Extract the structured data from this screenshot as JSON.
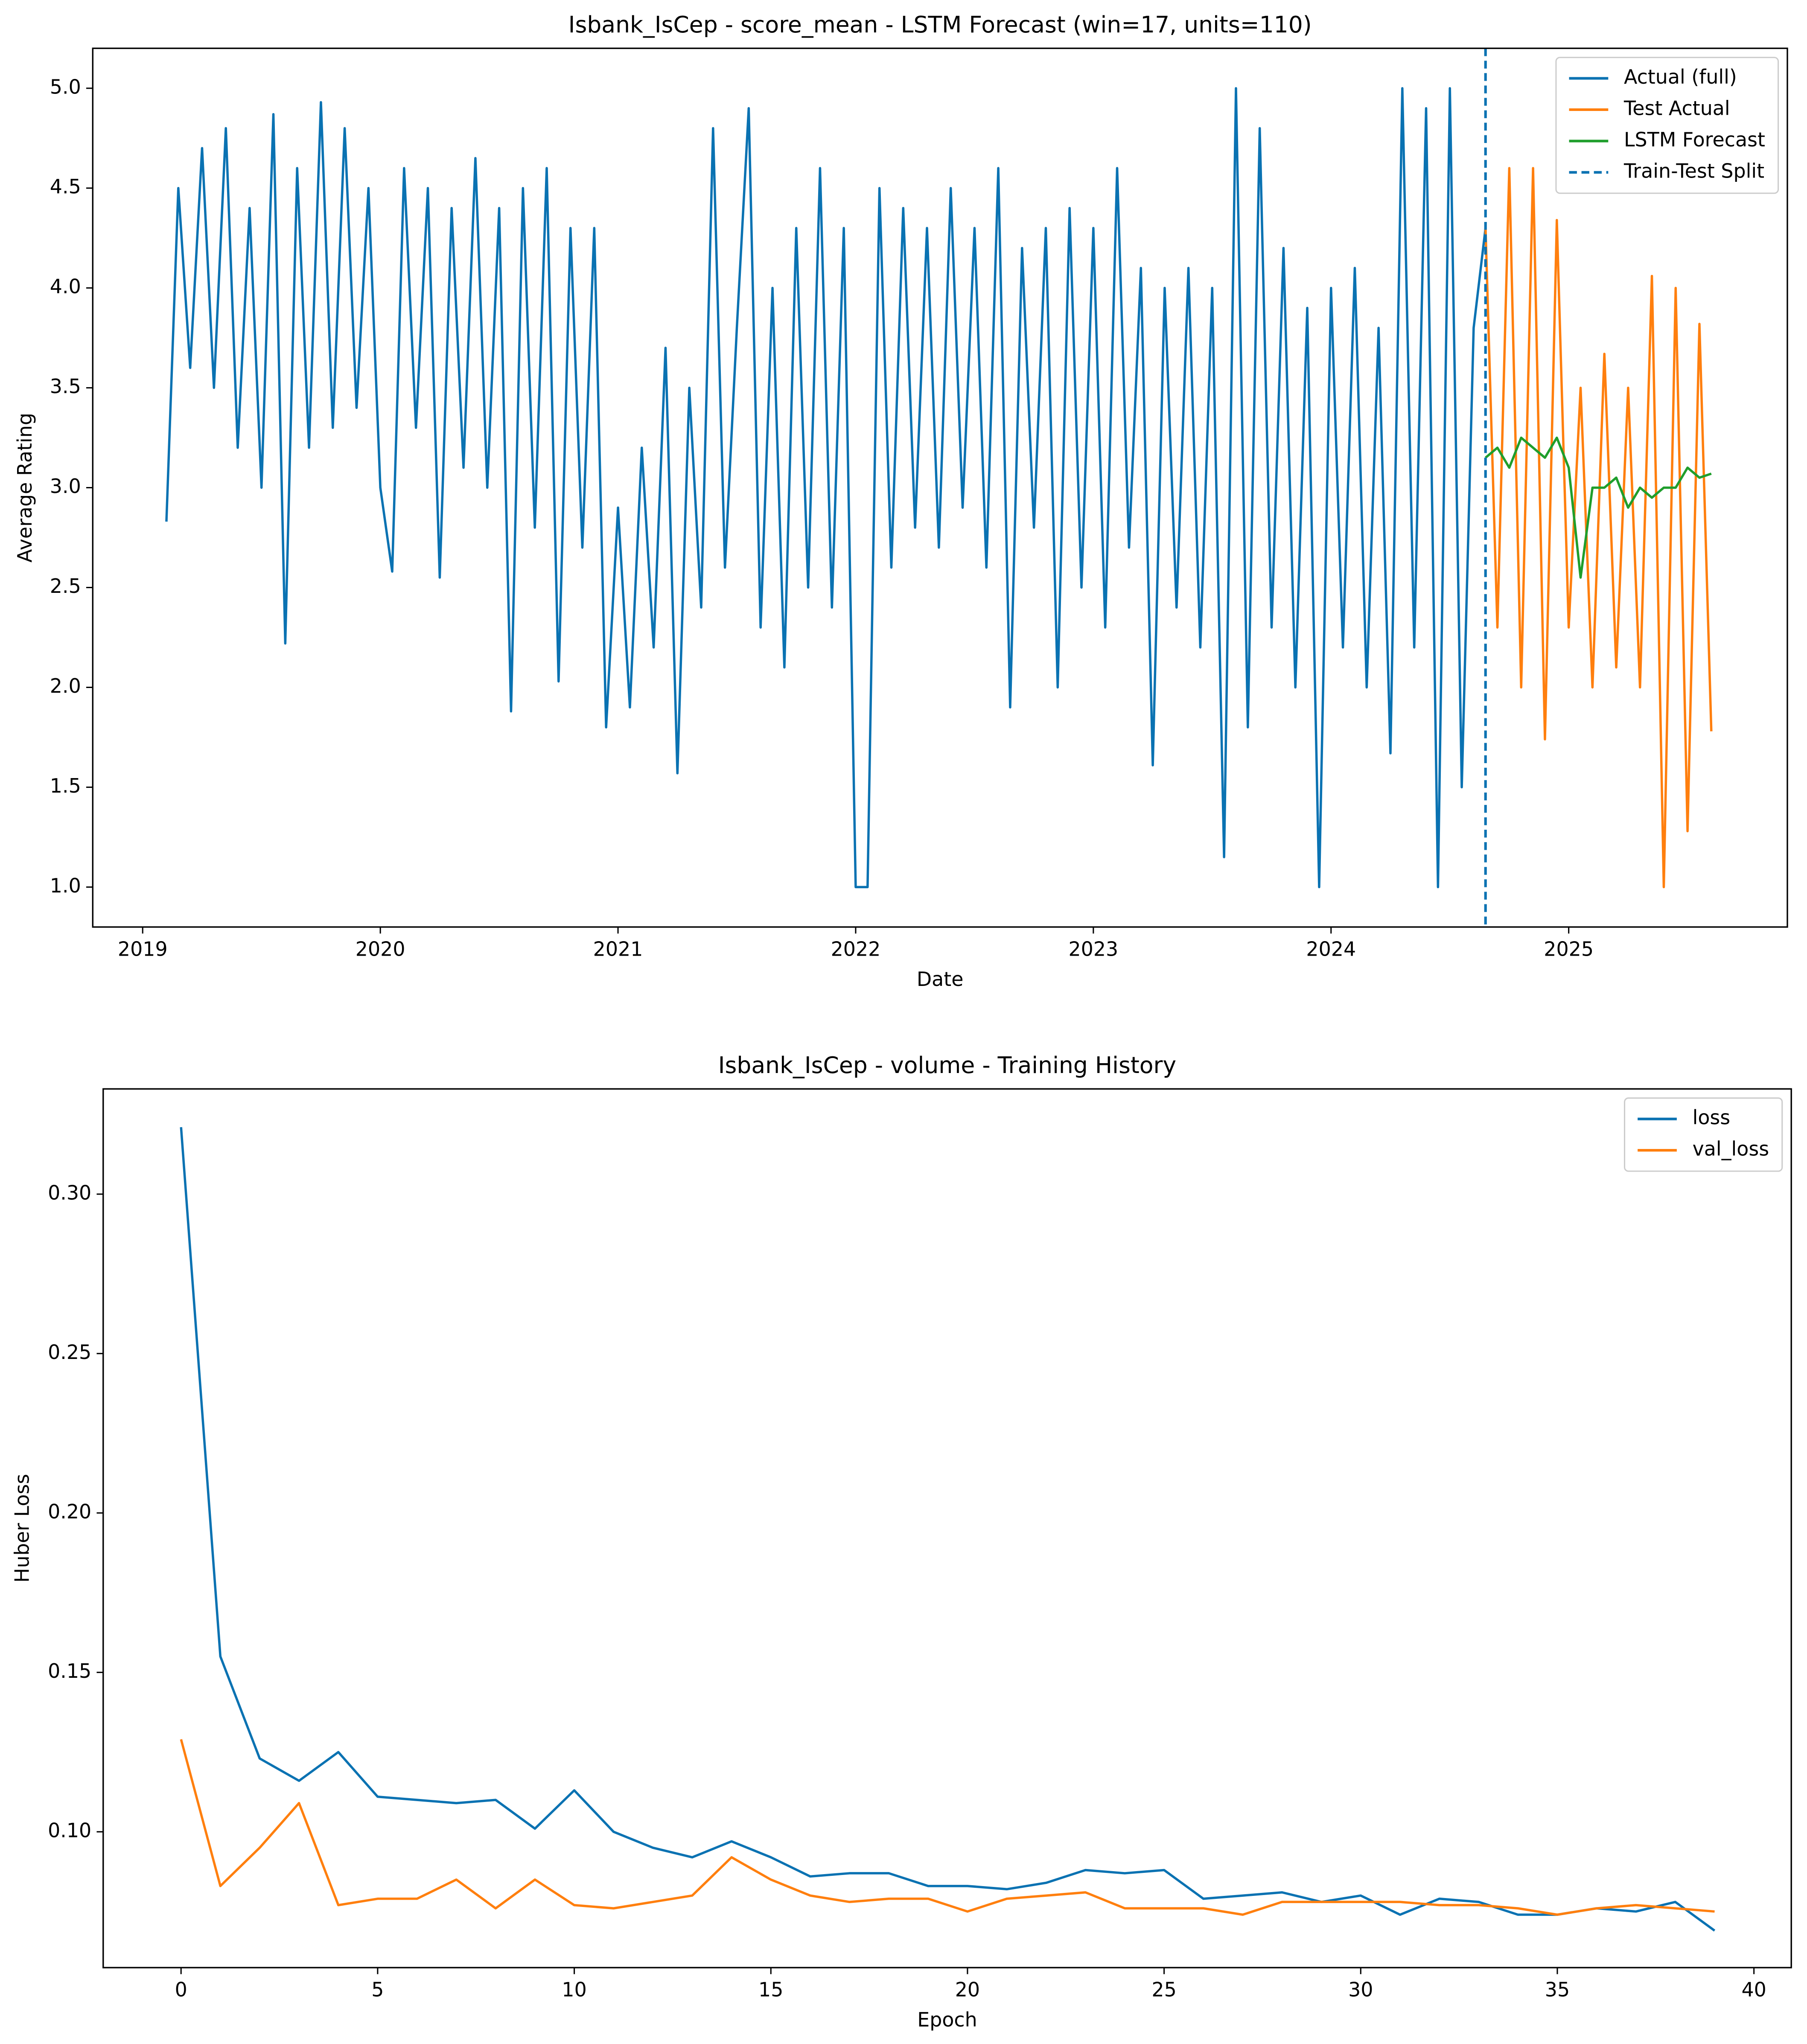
{
  "chart_data": [
    {
      "type": "line",
      "title": "Isbank_IsCep - score_mean - LSTM Forecast (win=17, units=110)",
      "xlabel": "Date",
      "ylabel": "Average Rating",
      "xlim": [
        2018.79,
        2025.92
      ],
      "xticks": [
        2019,
        2020,
        2021,
        2022,
        2023,
        2024,
        2025
      ],
      "ylim": [
        0.8,
        5.2
      ],
      "yticks": [
        {
          "value": 1.0,
          "label": "1.0"
        },
        {
          "value": 1.5,
          "label": "1.5"
        },
        {
          "value": 2.0,
          "label": "2.0"
        },
        {
          "value": 2.5,
          "label": "2.5"
        },
        {
          "value": 3.0,
          "label": "3.0"
        },
        {
          "value": 3.5,
          "label": "3.5"
        },
        {
          "value": 4.0,
          "label": "4.0"
        },
        {
          "value": 4.5,
          "label": "4.5"
        },
        {
          "value": 5.0,
          "label": "5.0"
        }
      ],
      "legend": "upper right",
      "series": [
        {
          "name": "Actual (full)",
          "color": "#0a72b2",
          "x": [
            2019.1,
            2019.15,
            2019.2,
            2019.25,
            2019.3,
            2019.35,
            2019.4,
            2019.45,
            2019.5,
            2019.55,
            2019.6,
            2019.65,
            2019.7,
            2019.75,
            2019.8,
            2019.85,
            2019.9,
            2019.95,
            2020.0,
            2020.05,
            2020.1,
            2020.15,
            2020.2,
            2020.25,
            2020.3,
            2020.35,
            2020.4,
            2020.45,
            2020.5,
            2020.55,
            2020.6,
            2020.65,
            2020.7,
            2020.75,
            2020.8,
            2020.85,
            2020.9,
            2020.95,
            2021.0,
            2021.05,
            2021.1,
            2021.15,
            2021.2,
            2021.25,
            2021.3,
            2021.35,
            2021.4,
            2021.45,
            2021.5,
            2021.55,
            2021.6,
            2021.65,
            2021.7,
            2021.75,
            2021.8,
            2021.85,
            2021.9,
            2021.95,
            2022.0,
            2022.05,
            2022.1,
            2022.15,
            2022.2,
            2022.25,
            2022.3,
            2022.35,
            2022.4,
            2022.45,
            2022.5,
            2022.55,
            2022.6,
            2022.65,
            2022.7,
            2022.75,
            2022.8,
            2022.85,
            2022.9,
            2022.95,
            2023.0,
            2023.05,
            2023.1,
            2023.15,
            2023.2,
            2023.25,
            2023.3,
            2023.35,
            2023.4,
            2023.45,
            2023.5,
            2023.55,
            2023.6,
            2023.65,
            2023.7,
            2023.75,
            2023.8,
            2023.85,
            2023.9,
            2023.95,
            2024.0,
            2024.05,
            2024.1,
            2024.15,
            2024.2,
            2024.25,
            2024.3,
            2024.35,
            2024.4,
            2024.45,
            2024.5,
            2024.55,
            2024.6,
            2024.65
          ],
          "values": [
            2.83,
            4.5,
            3.6,
            4.7,
            3.5,
            4.8,
            3.2,
            4.4,
            3.0,
            4.87,
            2.22,
            4.6,
            3.2,
            4.93,
            3.3,
            4.8,
            3.4,
            4.5,
            3.0,
            2.58,
            4.6,
            3.3,
            4.5,
            2.55,
            4.4,
            3.1,
            4.65,
            3.0,
            4.4,
            1.88,
            4.5,
            2.8,
            4.6,
            2.03,
            4.3,
            2.7,
            4.3,
            1.8,
            2.9,
            1.9,
            3.2,
            2.2,
            3.7,
            1.57,
            3.5,
            2.4,
            4.8,
            2.6,
            3.8,
            4.9,
            2.3,
            4.0,
            2.1,
            4.3,
            2.5,
            4.6,
            2.4,
            4.3,
            1.0,
            1.0,
            4.5,
            2.6,
            4.4,
            2.8,
            4.3,
            2.7,
            4.5,
            2.9,
            4.3,
            2.6,
            4.6,
            1.9,
            4.2,
            2.8,
            4.3,
            2.0,
            4.4,
            2.5,
            4.3,
            2.3,
            4.6,
            2.7,
            4.1,
            1.61,
            4.0,
            2.4,
            4.1,
            2.2,
            4.0,
            1.15,
            5.0,
            1.8,
            4.8,
            2.3,
            4.2,
            2.0,
            3.9,
            1.0,
            4.0,
            2.2,
            4.1,
            2.0,
            3.8,
            1.67,
            5.0,
            2.2,
            4.9,
            1.0,
            5.0,
            1.5,
            3.8,
            4.3
          ]
        },
        {
          "name": "Test Actual",
          "color": "#ff7f0e",
          "x": [
            2024.65,
            2024.7,
            2024.75,
            2024.8,
            2024.85,
            2024.9,
            2024.95,
            2025.0,
            2025.05,
            2025.1,
            2025.15,
            2025.2,
            2025.25,
            2025.3,
            2025.35,
            2025.4,
            2025.45,
            2025.5,
            2025.55,
            2025.6
          ],
          "values": [
            4.3,
            2.3,
            4.6,
            2.0,
            4.6,
            1.74,
            4.34,
            2.3,
            3.5,
            2.0,
            3.67,
            2.1,
            3.5,
            2.0,
            4.06,
            1.0,
            4.0,
            1.28,
            3.82,
            1.78
          ]
        },
        {
          "name": "LSTM Forecast",
          "color": "#1f9e2c",
          "x": [
            2024.65,
            2024.7,
            2024.75,
            2024.8,
            2024.85,
            2024.9,
            2024.95,
            2025.0,
            2025.05,
            2025.1,
            2025.15,
            2025.2,
            2025.25,
            2025.3,
            2025.35,
            2025.4,
            2025.45,
            2025.5,
            2025.55,
            2025.6
          ],
          "values": [
            3.15,
            3.2,
            3.1,
            3.25,
            3.2,
            3.15,
            3.25,
            3.1,
            2.55,
            3.0,
            3.0,
            3.05,
            2.9,
            3.0,
            2.95,
            3.0,
            3.0,
            3.1,
            3.05,
            3.07
          ]
        }
      ],
      "vlines": [
        {
          "name": "Train-Test Split",
          "x": 2024.65,
          "color": "#0a72b2",
          "dashed": true
        }
      ]
    },
    {
      "type": "line",
      "title": "Isbank_IsCep - volume - Training History",
      "xlabel": "Epoch",
      "ylabel": "Huber Loss",
      "xlim": [
        -1.98,
        40.95
      ],
      "xticks": [
        0,
        5,
        10,
        15,
        20,
        25,
        30,
        35,
        40
      ],
      "ylim": [
        0.0574,
        0.333
      ],
      "yticks": [
        {
          "value": 0.1,
          "label": "0.10"
        },
        {
          "value": 0.15,
          "label": "0.15"
        },
        {
          "value": 0.2,
          "label": "0.20"
        },
        {
          "value": 0.25,
          "label": "0.25"
        },
        {
          "value": 0.3,
          "label": "0.30"
        }
      ],
      "legend": "upper right",
      "x": [
        0,
        1,
        2,
        3,
        4,
        5,
        6,
        7,
        8,
        9,
        10,
        11,
        12,
        13,
        14,
        15,
        16,
        17,
        18,
        19,
        20,
        21,
        22,
        23,
        24,
        25,
        26,
        27,
        28,
        29,
        30,
        31,
        32,
        33,
        34,
        35,
        36,
        37,
        38,
        39
      ],
      "series": [
        {
          "name": "loss",
          "color": "#0a72b2",
          "values": [
            0.321,
            0.155,
            0.123,
            0.116,
            0.125,
            0.111,
            0.11,
            0.109,
            0.11,
            0.101,
            0.113,
            0.1,
            0.095,
            0.092,
            0.097,
            0.092,
            0.086,
            0.087,
            0.087,
            0.083,
            0.083,
            0.082,
            0.084,
            0.088,
            0.087,
            0.088,
            0.079,
            0.08,
            0.081,
            0.078,
            0.08,
            0.074,
            0.079,
            0.078,
            0.074,
            0.074,
            0.076,
            0.075,
            0.078,
            0.069
          ]
        },
        {
          "name": "val_loss",
          "color": "#ff7f0e",
          "values": [
            0.129,
            0.083,
            0.095,
            0.109,
            0.077,
            0.079,
            0.079,
            0.085,
            0.076,
            0.085,
            0.077,
            0.076,
            0.078,
            0.08,
            0.092,
            0.085,
            0.08,
            0.078,
            0.079,
            0.079,
            0.075,
            0.079,
            0.08,
            0.081,
            0.076,
            0.076,
            0.076,
            0.074,
            0.078,
            0.078,
            0.078,
            0.078,
            0.077,
            0.077,
            0.076,
            0.074,
            0.076,
            0.077,
            0.076,
            0.075
          ]
        }
      ]
    }
  ]
}
